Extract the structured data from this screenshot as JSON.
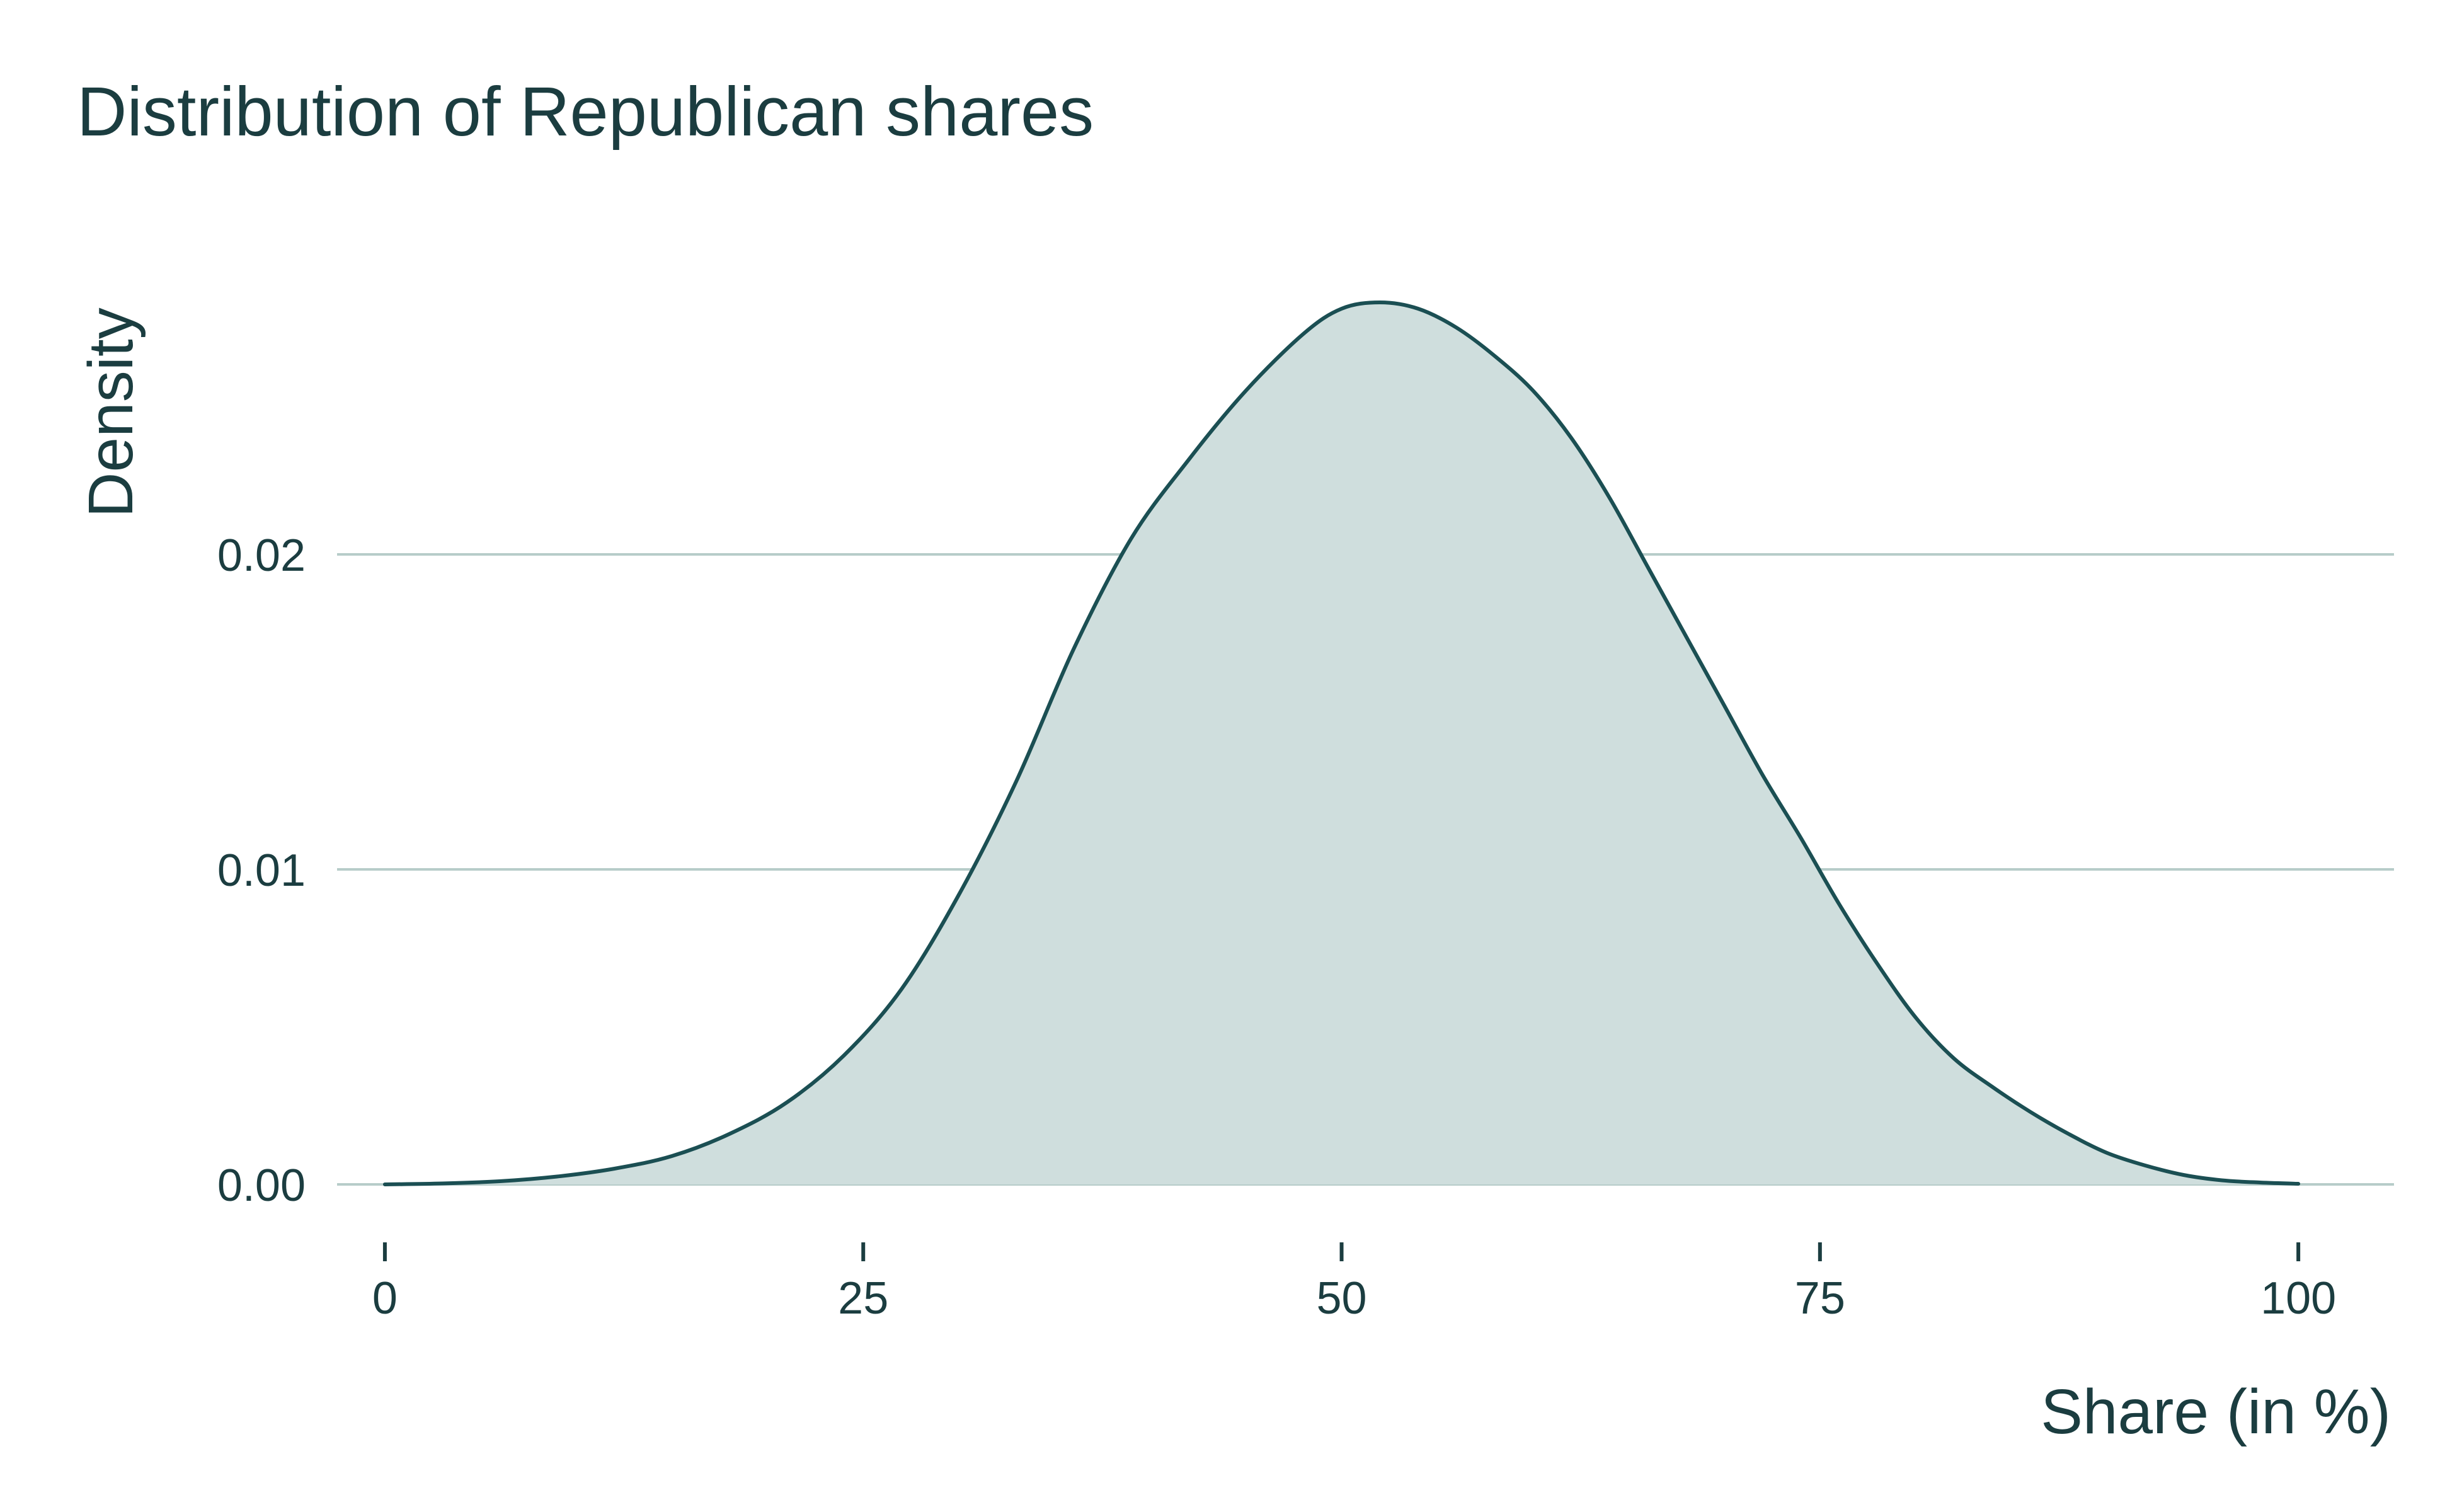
{
  "chart_data": {
    "type": "area",
    "title": "Distribution of Republican shares",
    "xlabel": "Share (in %)",
    "ylabel": "Density",
    "xlim": [
      -2.5,
      105
    ],
    "ylim": [
      -0.0008,
      0.029
    ],
    "x_ticks": [
      0,
      25,
      50,
      75,
      100
    ],
    "x_tick_labels": [
      "0",
      "25",
      "50",
      "75",
      "100"
    ],
    "y_ticks": [
      0.0,
      0.01,
      0.02
    ],
    "y_tick_labels": [
      "0.00",
      "0.01",
      "0.02"
    ],
    "grid": "horizontal",
    "legend": "none",
    "colors": {
      "line": "#1b4f53",
      "fill": "#cfdedd",
      "grid": "#b7ccc9",
      "text": "#1b3d40"
    },
    "series": [
      {
        "x": [
          0,
          3,
          6,
          9,
          12,
          15,
          18,
          21,
          24,
          27,
          30,
          33,
          36,
          39,
          42,
          45,
          48,
          50,
          52,
          54,
          56,
          58,
          60,
          62,
          64,
          66,
          68,
          70,
          72,
          74,
          76,
          78,
          80,
          82,
          84,
          86,
          88,
          90,
          92,
          94,
          96,
          98,
          100
        ],
        "y": [
          0.0,
          3e-05,
          0.0001,
          0.00025,
          0.0005,
          0.0009,
          0.0016,
          0.0026,
          0.0041,
          0.0062,
          0.0092,
          0.0128,
          0.017,
          0.0205,
          0.023,
          0.0252,
          0.027,
          0.0278,
          0.028,
          0.0278,
          0.0272,
          0.0263,
          0.0252,
          0.0237,
          0.0218,
          0.0196,
          0.0174,
          0.0152,
          0.013,
          0.011,
          0.0089,
          0.007,
          0.0053,
          0.004,
          0.0031,
          0.0023,
          0.0016,
          0.001,
          0.0006,
          0.0003,
          0.00013,
          6e-05,
          2e-05
        ]
      }
    ]
  }
}
